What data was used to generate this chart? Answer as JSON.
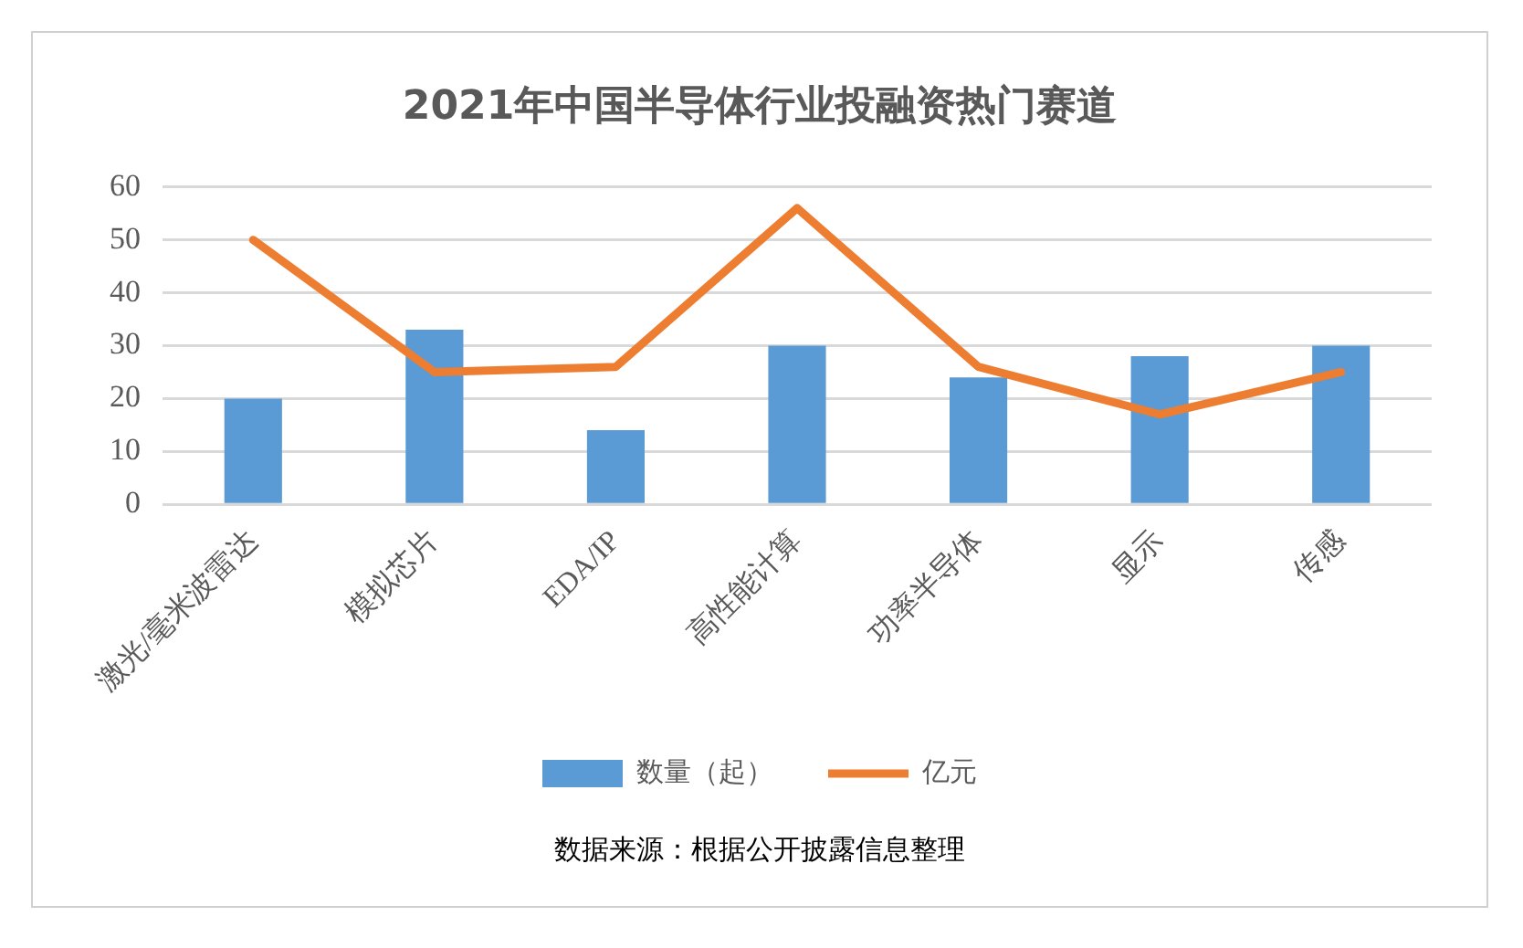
{
  "chart_data": {
    "type": "bar",
    "title": "2021年中国半导体行业投融资热门赛道",
    "categories": [
      "激光/毫米波雷达",
      "模拟芯片",
      "EDA/IP",
      "高性能计算",
      "功率半导体",
      "显示",
      "传感"
    ],
    "series": [
      {
        "name": "数量（起）",
        "color": "#5b9bd5",
        "values": [
          20,
          33,
          14,
          30,
          24,
          28,
          30
        ]
      },
      {
        "name": "亿元",
        "type": "line",
        "color": "#ed7d31",
        "values": [
          50,
          25,
          26,
          56,
          26,
          17,
          25
        ]
      }
    ],
    "ylim": [
      0,
      60
    ],
    "yticks": [
      0,
      10,
      20,
      30,
      40,
      50,
      60
    ],
    "grid": "y",
    "legend": "bottom",
    "marker": "none",
    "line_style": "solid",
    "annotations": [
      "数据来源：根据公开披露信息整理"
    ]
  }
}
